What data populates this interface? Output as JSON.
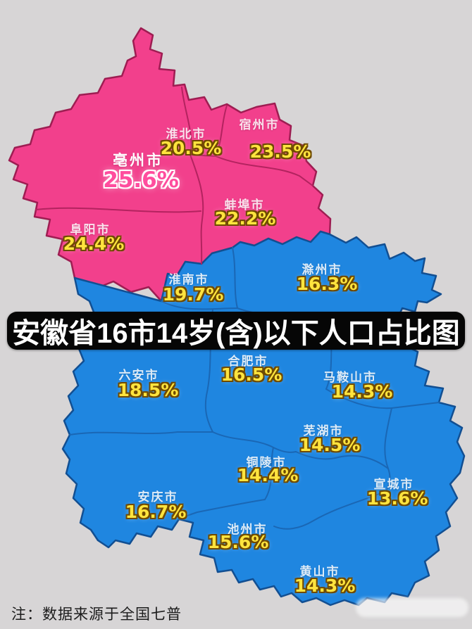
{
  "title": "安徽省16市14岁(含)以下人口占比图",
  "note": "注：数据来源于全国七普",
  "colors": {
    "background": "#d7d5d6",
    "north_region": "#f2408c",
    "north_border": "#9e1d52",
    "south_region": "#1f86e0",
    "south_border": "#124f92",
    "value_text": "#ffe43e",
    "highlight_value_text": "#ff4d9e",
    "title_bg": "#060606",
    "title_text": "#ffffff"
  },
  "chart_data": {
    "type": "choropleth-map",
    "region": "安徽省",
    "metric": "14岁(含)以下人口占比",
    "groups": {
      "north": "占比高(粉色)",
      "south": "占比低(蓝色)"
    },
    "cities": [
      {
        "name": "亳州市",
        "value": "25.6%",
        "group": "north"
      },
      {
        "name": "淮北市",
        "value": "20.5%",
        "group": "north"
      },
      {
        "name": "宿州市",
        "value": "23.5%",
        "group": "north"
      },
      {
        "name": "阜阳市",
        "value": "24.4%",
        "group": "north"
      },
      {
        "name": "蚌埠市",
        "value": "22.2%",
        "group": "north"
      },
      {
        "name": "淮南市",
        "value": "19.7%",
        "group": "south"
      },
      {
        "name": "滁州市",
        "value": "16.3%",
        "group": "south"
      },
      {
        "name": "六安市",
        "value": "18.5%",
        "group": "south"
      },
      {
        "name": "合肥市",
        "value": "16.5%",
        "group": "south"
      },
      {
        "name": "马鞍山市",
        "value": "14.3%",
        "group": "south"
      },
      {
        "name": "芜湖市",
        "value": "14.5%",
        "group": "south"
      },
      {
        "name": "铜陵市",
        "value": "14.4%",
        "group": "south"
      },
      {
        "name": "宣城市",
        "value": "13.6%",
        "group": "south"
      },
      {
        "name": "安庆市",
        "value": "16.7%",
        "group": "south"
      },
      {
        "name": "池州市",
        "value": "15.6%",
        "group": "south"
      },
      {
        "name": "黄山市",
        "value": "14.3%",
        "group": "south"
      }
    ]
  }
}
